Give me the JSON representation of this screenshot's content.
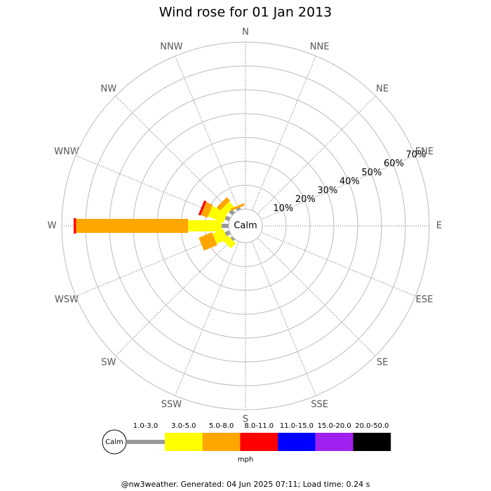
{
  "chart_data": {
    "type": "windrose",
    "title": "Wind rose for 01 Jan 2013",
    "categories": [
      "N",
      "NNE",
      "NE",
      "ENE",
      "E",
      "ESE",
      "SE",
      "SSE",
      "S",
      "SSW",
      "SW",
      "WSW",
      "W",
      "WNW",
      "NW",
      "NNW"
    ],
    "calm_label": "Calm",
    "rlim": [
      0,
      70
    ],
    "rticks": [
      {
        "value": 10,
        "label": "10%"
      },
      {
        "value": 20,
        "label": "20%"
      },
      {
        "value": 30,
        "label": "30%"
      },
      {
        "value": 40,
        "label": "40%"
      },
      {
        "value": 50,
        "label": "50%"
      },
      {
        "value": 60,
        "label": "60%"
      },
      {
        "value": 70,
        "label": "70%"
      }
    ],
    "series": [
      {
        "name": "1.0-3.0",
        "color": "#999999",
        "values": [
          0,
          0,
          0,
          0,
          0,
          0,
          0,
          0,
          0,
          0,
          1,
          2,
          3,
          2,
          2,
          1
        ]
      },
      {
        "name": "3.0-5.0",
        "color": "#ffff00",
        "values": [
          0,
          0,
          0,
          0,
          0,
          0,
          0,
          0,
          0,
          0,
          3,
          5,
          14,
          7,
          3,
          0
        ]
      },
      {
        "name": "5.0-8.0",
        "color": "#ffa500",
        "values": [
          0,
          0,
          0,
          0,
          0,
          0,
          0,
          0,
          0,
          0,
          0,
          6,
          47,
          3,
          2,
          1
        ]
      },
      {
        "name": "8.0-11.0",
        "color": "#ff0000",
        "values": [
          0,
          0,
          0,
          0,
          0,
          0,
          0,
          0,
          0,
          0,
          0,
          0,
          1,
          1,
          0,
          0
        ]
      },
      {
        "name": "11.0-15.0",
        "color": "#0000ff",
        "values": [
          0,
          0,
          0,
          0,
          0,
          0,
          0,
          0,
          0,
          0,
          0,
          0,
          0,
          0,
          0,
          0
        ]
      },
      {
        "name": "15.0-20.0",
        "color": "#a020f0",
        "values": [
          0,
          0,
          0,
          0,
          0,
          0,
          0,
          0,
          0,
          0,
          0,
          0,
          0,
          0,
          0,
          0
        ]
      },
      {
        "name": "20.0-50.0",
        "color": "#000000",
        "values": [
          0,
          0,
          0,
          0,
          0,
          0,
          0,
          0,
          0,
          0,
          0,
          0,
          0,
          0,
          0,
          0
        ]
      }
    ],
    "legend_unit": "mph",
    "footer": "@nw3weather. Generated: 04 Jun 2025 07:11; Load time: 0.24 s"
  }
}
